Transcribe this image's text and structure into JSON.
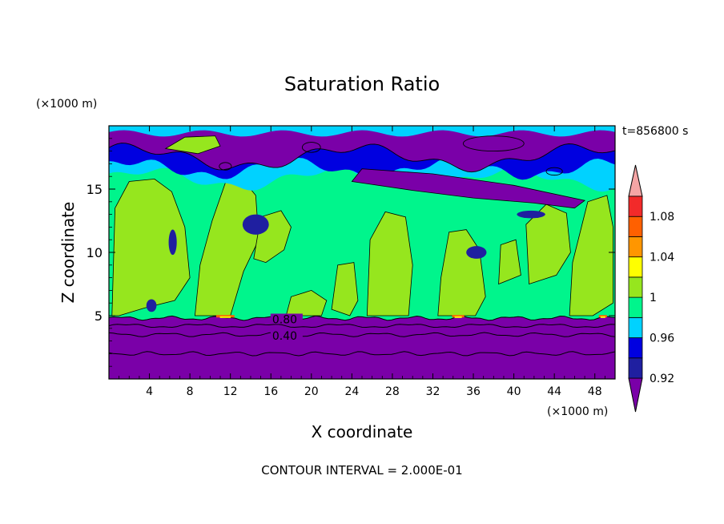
{
  "chart_data": {
    "type": "heatmap",
    "title": "Saturation Ratio",
    "xlabel": "X coordinate",
    "ylabel": "Z coordinate",
    "x_unit": "(×1000 m)",
    "y_unit": "(×1000 m)",
    "time_label": "t=856800 s",
    "footer": "CONTOUR INTERVAL = 2.000E-01",
    "xlim": [
      0,
      50
    ],
    "ylim": [
      0,
      20
    ],
    "x_ticks": [
      4,
      8,
      12,
      16,
      20,
      24,
      28,
      32,
      36,
      40,
      44,
      48
    ],
    "x_tick_labels": [
      "4",
      "8",
      "12",
      "16",
      "20",
      "24",
      "28",
      "32",
      "36",
      "40",
      "44",
      "48"
    ],
    "y_ticks": [
      5,
      10,
      15
    ],
    "y_tick_labels": [
      "5",
      "10",
      "15"
    ],
    "contour_labels": [
      {
        "text": "0.80",
        "x": 17.0,
        "z": 4.4
      },
      {
        "text": "0.40",
        "x": 17.0,
        "z": 3.1
      }
    ],
    "colorbar": {
      "levels": [
        0.92,
        0.94,
        0.96,
        0.98,
        1.0,
        1.02,
        1.04,
        1.06,
        1.08,
        1.1
      ],
      "tick_values": [
        0.92,
        0.96,
        1.0,
        1.04,
        1.08
      ],
      "tick_labels": [
        "0.92",
        "0.96",
        "1",
        "1.04",
        "1.08"
      ],
      "colors": [
        "#7a00a8",
        "#1f1fa0",
        "#0000e0",
        "#00d2ff",
        "#00f58c",
        "#96e61e",
        "#ffff00",
        "#ff9600",
        "#ff6000",
        "#f22a2a",
        "#f5a5a5"
      ]
    },
    "regions": {
      "lower_dry_layer_top_z": 4.8,
      "dry_layer_contours_z": [
        4.2,
        3.5,
        2.0
      ],
      "upper_dry_layer_bottom_z": 14.0
    }
  }
}
